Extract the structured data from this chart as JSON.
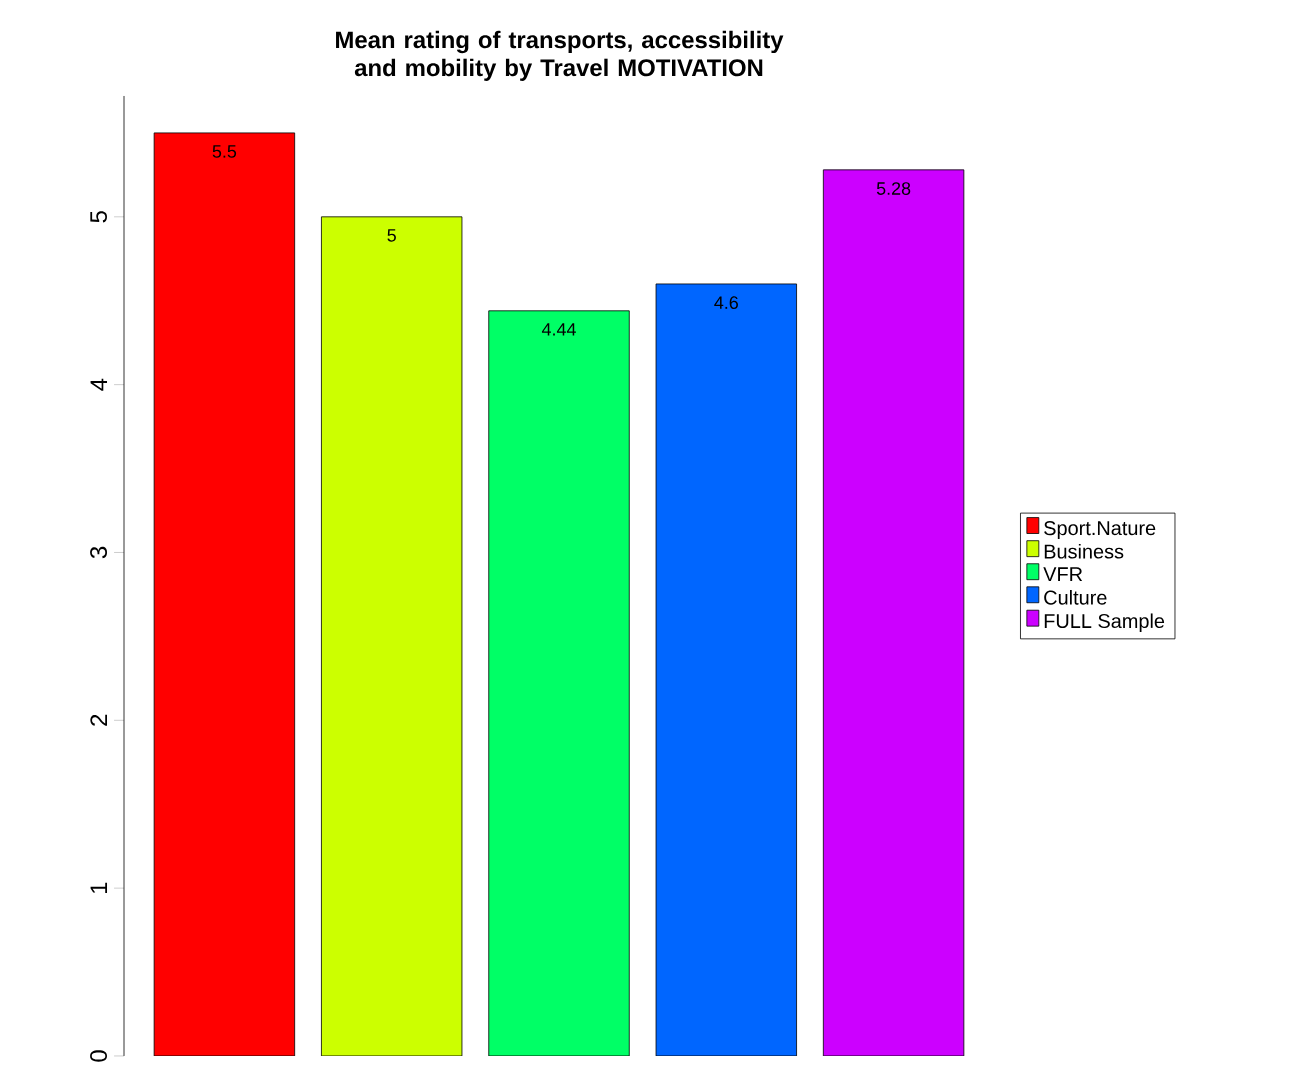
{
  "chart_data": {
    "type": "bar",
    "title": "Mean rating of transports, accessibility and mobility by Travel MOTIVATION",
    "categories": [
      null,
      null,
      null,
      null,
      null
    ],
    "stacked": true,
    "series": [
      {
        "name": "Sport.Nature",
        "color": "#ff0000",
        "values": [
          5.5,
          0,
          0,
          0,
          0
        ],
        "value_labels": [
          "5.5",
          null,
          null,
          null,
          null
        ]
      },
      {
        "name": "Business",
        "color": "#ccff00",
        "values": [
          0,
          5,
          0,
          0,
          0
        ],
        "value_labels": [
          null,
          "5",
          null,
          null,
          null
        ]
      },
      {
        "name": "VFR",
        "color": "#00ff66",
        "values": [
          0,
          0,
          4.44,
          0,
          0
        ],
        "value_labels": [
          null,
          null,
          "4.44",
          null,
          null
        ]
      },
      {
        "name": "Culture",
        "color": "#0066ff",
        "values": [
          0,
          0,
          0,
          4.6,
          0
        ],
        "value_labels": [
          null,
          null,
          null,
          "4.6",
          null
        ]
      },
      {
        "name": "FULL Sample",
        "color": "#cc00ff",
        "values": [
          0,
          0,
          0,
          0,
          5.28
        ],
        "value_labels": [
          null,
          null,
          null,
          null,
          "5.28"
        ]
      }
    ],
    "ylim": [
      0,
      5.72
    ],
    "yticks": [
      0,
      1,
      2,
      3,
      4,
      5
    ],
    "legend": "right",
    "grid": false
  }
}
